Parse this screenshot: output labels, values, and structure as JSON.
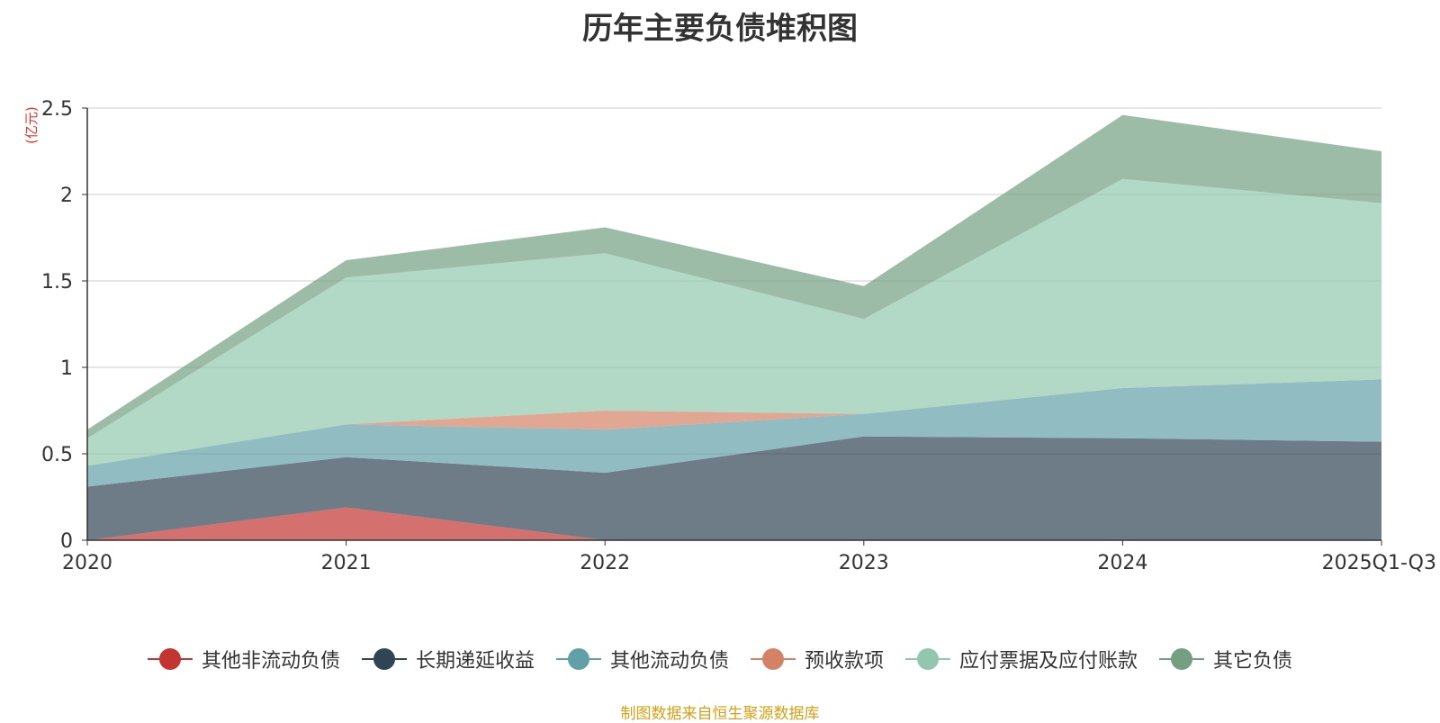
{
  "chart_data": {
    "type": "area",
    "title": "历年主要负债堆积图",
    "ylabel": "(亿元)",
    "categories": [
      "2020",
      "2021",
      "2022",
      "2023",
      "2024",
      "2025Q1-Q3"
    ],
    "ylim": [
      0,
      2.5
    ],
    "yticks": [
      "0",
      "0.5",
      "1",
      "1.5",
      "2",
      "2.5"
    ],
    "grid": true,
    "stacked": true,
    "legend_position": "bottom",
    "series": [
      {
        "name": "其他非流动负债",
        "color": "#c23531",
        "values": [
          0.0,
          0.19,
          0.0,
          0.0,
          0.0,
          0.0
        ]
      },
      {
        "name": "长期递延收益",
        "color": "#2f4554",
        "values": [
          0.31,
          0.29,
          0.39,
          0.6,
          0.59,
          0.57
        ]
      },
      {
        "name": "其他流动负债",
        "color": "#61a0a8",
        "values": [
          0.12,
          0.19,
          0.25,
          0.13,
          0.29,
          0.36
        ]
      },
      {
        "name": "预收款项",
        "color": "#d48265",
        "values": [
          0.0,
          0.0,
          0.11,
          0.0,
          0.0,
          0.0
        ]
      },
      {
        "name": "应付票据及应付账款",
        "color": "#91c7ae",
        "values": [
          0.16,
          0.85,
          0.91,
          0.55,
          1.21,
          1.02
        ]
      },
      {
        "name": "其它负债",
        "color": "#749f83",
        "values": [
          0.05,
          0.1,
          0.15,
          0.19,
          0.37,
          0.3
        ]
      }
    ]
  },
  "source_note": "制图数据来自恒生聚源数据库"
}
